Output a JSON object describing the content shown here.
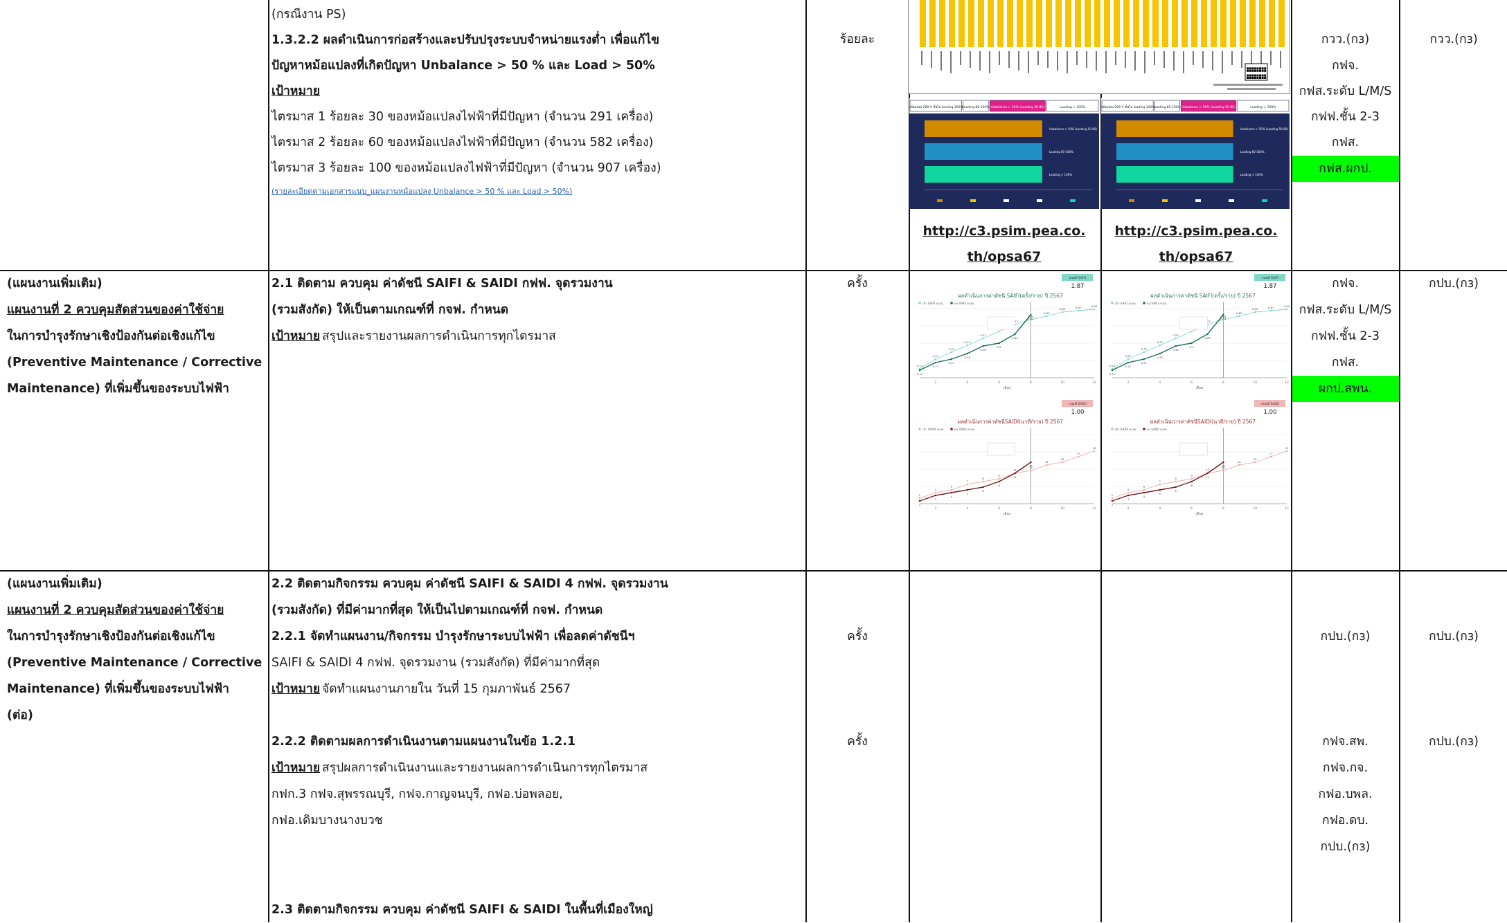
{
  "row1": {
    "col2_lines": [
      "(กรณีงาน PS)",
      "1.3.2.2 ผลดำเนินการก่อสร้างและปรับปรุงระบบจำหน่ายแรงต่ำ เพื่อแก้ไข",
      "ปัญหาหม้อแปลงที่เกิดปัญหา Unbalance > 50 % และ Load > 50%",
      "เป้าหมาย",
      "ไตรมาส 1 ร้อยละ 30 ของหม้อแปลงไฟฟ้าที่มีปัญหา (จำนวน  291 เครื่อง)",
      "ไตรมาส 2 ร้อยละ 60 ของหม้อแปลงไฟฟ้าที่มีปัญหา (จำนวน 582 เครื่อง)",
      "ไตรมาส 3 ร้อยละ 100 ของหม้อแปลงไฟฟ้าที่มีปัญหา (จำนวน 907 เครื่อง)"
    ],
    "link_text": "(รายละเอียดตามเอกสารแนบ_แผนงานหม้อแปลง Unbalance > 50 % และ Load > 50%)",
    "unit": "ร้อยละ",
    "url_left": [
      "http://c3.psim.pea.co.",
      "th/opsa67"
    ],
    "url_right": [
      "http://c3.psim.pea.co.",
      "th/opsa67"
    ],
    "col6": [
      "กวว.(กз)",
      "กฟจ.",
      "กฟส.ระดับ L/M/S",
      "กฟฟ.ชั้น 2-3",
      "กฟส.",
      "กฟส.ผกป."
    ],
    "col7": "กวว.(กз)",
    "legend_labels": [
      "Unbalance > 50% (Loading 50-80)",
      "Loading 80-100%",
      "Loading > 100%"
    ],
    "panel_headers": [
      "หม้อแปลง 208 V ขั้นไป loading 100%",
      "Loading 80-100%",
      "Unbalance > 50% (Loading 50-80)",
      "Loading > 100%"
    ]
  },
  "row2": {
    "col1_lines": [
      "(แผนงานเพิ่มเติม)",
      "แผนงานที่ 2 ควบคุมสัดส่วนของค่าใช้จ่าย",
      " ในการบำรุงรักษาเชิงป้องกันต่อเชิงแก้ไข",
      "(Preventive Maintenance / Corrective",
      " Maintenance) ที่เพิ่มขึ้นของระบบไฟฟ้า"
    ],
    "col2_lines": [
      "2.1 ติดตาม ควบคุม ค่าดัชนี SAIFI & SAIDI กฟฟ. จุดรวมงาน",
      "(รวมสังกัด) ให้เป็นตามเกณฑ์ที่ กจฟ. กำหนด",
      "เป้าหมาย",
      " สรุปและรายงานผลการดำเนินการทุกไตรมาส"
    ],
    "unit": "ครั้ง",
    "col6": [
      "กฟจ.",
      "กฟส.ระดับ L/M/S",
      "กฟฟ.ชั้น 2-3",
      "กฟส.",
      "ผกป.สพน."
    ],
    "col7": "กปบ.(กз)",
    "saifi_title": "ผลดำเนินการค่าดัชนี SAIFI(ครั้ง/ราย) ปี 2567",
    "saidi_title": "ผลดำเนินการค่าดัชนีSAIDI(นาที/ราย) ปี 2567",
    "saifi_badge_label": "เกณฑ์ SAIFI",
    "saifi_badge_value": "1.87",
    "saidi_badge_label": "เกณฑ์ SAIDI",
    "saidi_badge_value": "1.00",
    "saifi_legend": [
      "เป้า SAIFI สะสม",
      "ผล SAIFI สะสม"
    ],
    "saidi_legend": [
      "เป้า SAIDI สะสม",
      "ผล SAIDI สะสม"
    ],
    "x_axis_label": "เดือน"
  },
  "row3": {
    "col1_lines": [
      "(แผนงานเพิ่มเติม)",
      "แผนงานที่ 2 ควบคุมสัดส่วนของค่าใช้จ่าย",
      " ในการบำรุงรักษาเชิงป้องกันต่อเชิงแก้ไข",
      "(Preventive Maintenance / Corrective",
      " Maintenance) ที่เพิ่มขึ้นของระบบไฟฟ้า",
      "(ต่อ)"
    ],
    "col2_lines": [
      "2.2 ติดตามกิจกรรม ควบคุม ค่าดัชนี SAIFI & SAIDI 4 กฟฟ. จุดรวมงาน",
      "(รวมสังกัด) ที่มีค่ามากที่สุด ให้เป็นไปตามเกณฑ์ที่ กจฟ. กำหนด",
      "2.2.1 จัดทำแผนงาน/กิจกรรม บำรุงรักษาระบบไฟฟ้า เพื่อลดค่าดัชนีฯ",
      " SAIFI & SAIDI 4 กฟฟ. จุดรวมงาน (รวมสังกัด) ที่มีค่ามากที่สุด",
      "เป้าหมาย",
      "  จัดทำแผนงานภายใน วันที่ 15 กุมภาพันธ์ 2567",
      "2.2.2 ติดตามผลการดำเนินงานตามแผนงานในข้อ 1.2.1",
      "เป้าหมาย",
      "  สรุปผลการดำเนินงานและรายงานผลการดำเนินการทุกไตรมาส",
      "กฟก.3     กฟจ.สุพรรณบุรี, กฟจ.กาญจนบุรี, กฟอ.บ่อพลอย,",
      " กฟอ.เดิมบางนางบวช",
      "2.3 ติดตามกิจกรรม ควบคุม ค่าดัชนี SAIFI & SAIDI ในพื้นที่เมืองใหญ่"
    ],
    "unit_a": "ครั้ง",
    "unit_b": "ครั้ง",
    "col6_a": "กปบ.(กз)",
    "col7_a": "กปบ.(กз)",
    "col6_b": [
      "กฟจ.สพ.",
      "กฟจ.กจ.",
      "กฟอ.บพล.",
      "กฟอ.ดบ.",
      "กปบ.(กз)"
    ],
    "col7_b": "กปบ.(กз)"
  },
  "chart_data": [
    {
      "type": "line",
      "title": "ผลดำเนินการค่าดัชนี SAIFI(ครั้ง/ราย) ปี 2567",
      "xlabel": "เดือน",
      "x": [
        1,
        2,
        3,
        4,
        5,
        6,
        7,
        8,
        9,
        10,
        11,
        12
      ],
      "series": [
        {
          "name": "เป้า SAIFI สะสม",
          "values": [
            0.13,
            0.27,
            0.37,
            0.47,
            0.57,
            0.67,
            0.77,
            0.84,
            0.89,
            0.95,
            0.97,
            0.99
          ]
        },
        {
          "name": "ผล SAIFI สะสม",
          "values": [
            0.11,
            0.22,
            0.27,
            0.35,
            0.46,
            0.5,
            0.63,
            0.91,
            null,
            null,
            null,
            null
          ]
        }
      ],
      "ylim": [
        0,
        1.0
      ]
    },
    {
      "type": "line",
      "title": "ผลดำเนินการค่าดัชนีSAIDI(นาที/ราย) ปี 2567",
      "xlabel": "เดือน",
      "x": [
        1,
        2,
        3,
        4,
        5,
        6,
        7,
        8,
        9,
        10,
        11,
        12
      ],
      "series": [
        {
          "name": "เป้า SAIDI สะสม",
          "values": [
            2,
            4,
            5,
            7,
            8,
            9,
            11,
            12,
            14,
            15,
            17,
            19
          ]
        },
        {
          "name": "ผล SAIDI สะสม",
          "values": [
            1,
            3,
            4,
            5,
            6,
            8,
            11,
            15,
            null,
            null,
            null,
            null
          ]
        }
      ],
      "ylim": [
        0,
        25
      ]
    }
  ]
}
